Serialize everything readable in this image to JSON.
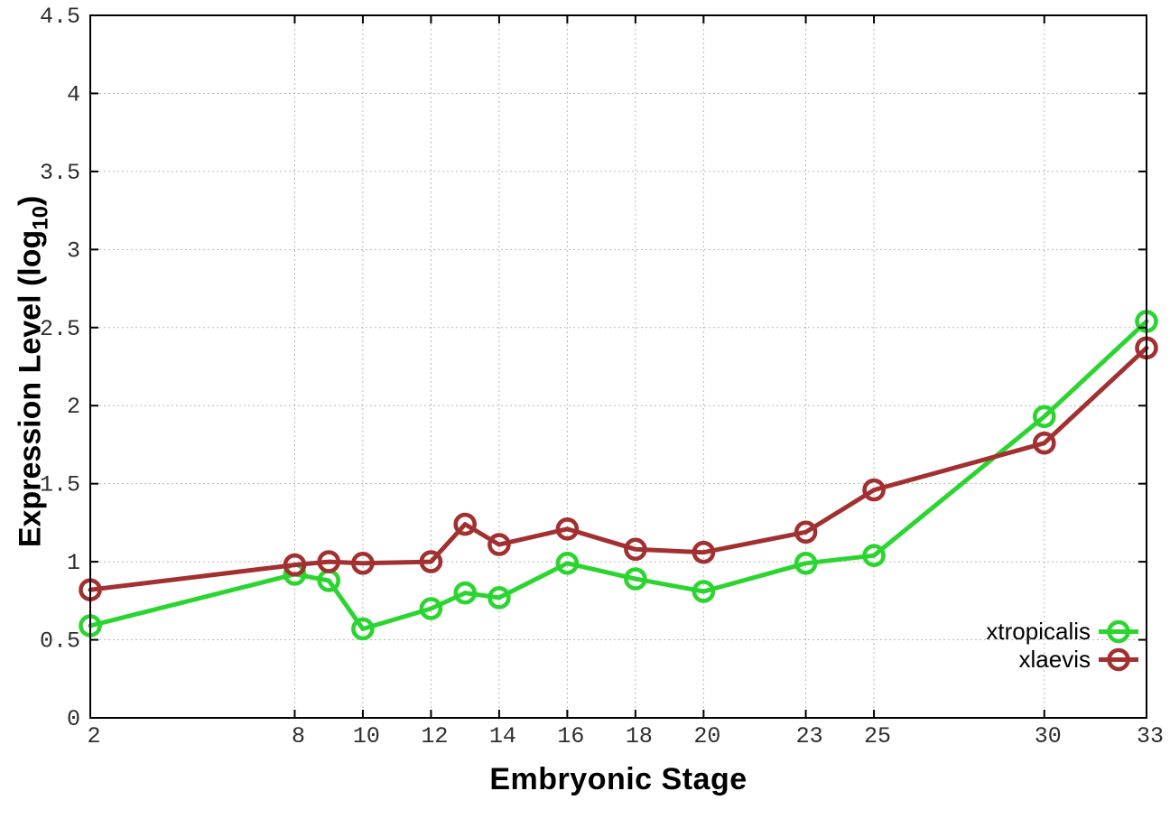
{
  "chart_data": {
    "type": "line",
    "title": "",
    "xlabel": "Embryonic Stage",
    "ylabel": {
      "pre": "Expression Level (log",
      "sub": "10",
      "post": ")"
    },
    "xlim": [
      2,
      33
    ],
    "ylim": [
      0,
      4.5
    ],
    "x_ticks": [
      2,
      8,
      10,
      12,
      14,
      16,
      18,
      20,
      23,
      25,
      30,
      33
    ],
    "y_ticks": [
      0,
      0.5,
      1,
      1.5,
      2,
      2.5,
      3,
      3.5,
      4,
      4.5
    ],
    "y_tick_labels": [
      "0",
      "0.5",
      "1",
      "1.5",
      "2",
      "2.5",
      "3",
      "3.5",
      "4",
      "4.5"
    ],
    "grid": true,
    "legend_position": "bottom-right",
    "marker": "open-circle",
    "x": [
      2,
      8,
      9,
      10,
      12,
      13,
      14,
      16,
      18,
      20,
      23,
      25,
      30,
      33
    ],
    "series": [
      {
        "name": "xtropicalis",
        "color": "#2bd52f",
        "values": [
          0.59,
          0.92,
          0.88,
          0.57,
          0.7,
          0.8,
          0.77,
          0.99,
          0.89,
          0.81,
          0.99,
          1.04,
          1.93,
          2.54
        ]
      },
      {
        "name": "xlaevis",
        "color": "#a33030",
        "values": [
          0.82,
          0.98,
          1.0,
          0.99,
          1.0,
          1.24,
          1.11,
          1.21,
          1.08,
          1.06,
          1.19,
          1.46,
          1.76,
          2.37
        ]
      }
    ],
    "colors": {
      "grid": "#b8b8b8",
      "axis": "#000000",
      "tick_text": "#2e2e2e"
    }
  }
}
